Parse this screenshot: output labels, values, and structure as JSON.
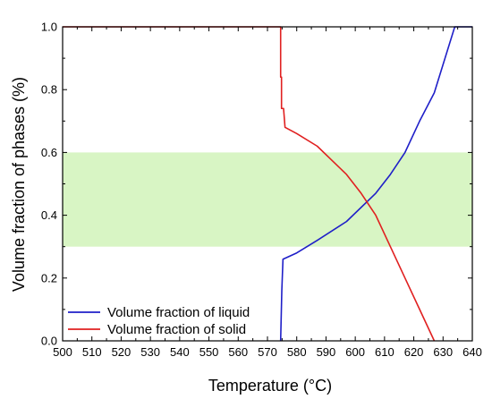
{
  "chart_data": {
    "type": "line",
    "xlabel": "Temperature (°C)",
    "ylabel": "Volume fraction of phases (%)",
    "xlim": [
      500,
      640
    ],
    "ylim": [
      0,
      1.0
    ],
    "x_ticks": [
      500,
      510,
      520,
      530,
      540,
      550,
      560,
      570,
      580,
      590,
      600,
      610,
      620,
      630,
      640
    ],
    "y_ticks": [
      "0.0",
      "0.2",
      "0.4",
      "0.6",
      "0.8",
      "1.0"
    ],
    "y_tick_values": [
      0,
      0.2,
      0.4,
      0.6,
      0.8,
      1.0
    ],
    "highlight_band": {
      "y_from": 0.3,
      "y_to": 0.6,
      "color": "#d8f5c4"
    },
    "legend_position": "bottom-left",
    "series": [
      {
        "name": "Volume fraction of liquid",
        "color": "#1f1fc8",
        "points": [
          [
            574.5,
            0.0
          ],
          [
            574.7,
            0.08
          ],
          [
            574.9,
            0.16
          ],
          [
            575.3,
            0.26
          ],
          [
            580,
            0.28
          ],
          [
            587,
            0.32
          ],
          [
            597,
            0.38
          ],
          [
            607,
            0.47
          ],
          [
            612,
            0.53
          ],
          [
            617,
            0.6
          ],
          [
            622,
            0.7
          ],
          [
            627,
            0.79
          ],
          [
            634,
            1.0
          ],
          [
            640,
            1.0
          ]
        ]
      },
      {
        "name": "Volume fraction of solid",
        "color": "#e02020",
        "points": [
          [
            500,
            1.0
          ],
          [
            574.5,
            1.0
          ],
          [
            574.5,
            0.84
          ],
          [
            574.8,
            0.84
          ],
          [
            574.8,
            0.74
          ],
          [
            575.5,
            0.74
          ],
          [
            576,
            0.68
          ],
          [
            580,
            0.66
          ],
          [
            587,
            0.62
          ],
          [
            597,
            0.53
          ],
          [
            602,
            0.47
          ],
          [
            607,
            0.4
          ],
          [
            612,
            0.3
          ],
          [
            617,
            0.2
          ],
          [
            622,
            0.1
          ],
          [
            627,
            0.0
          ]
        ]
      }
    ]
  }
}
